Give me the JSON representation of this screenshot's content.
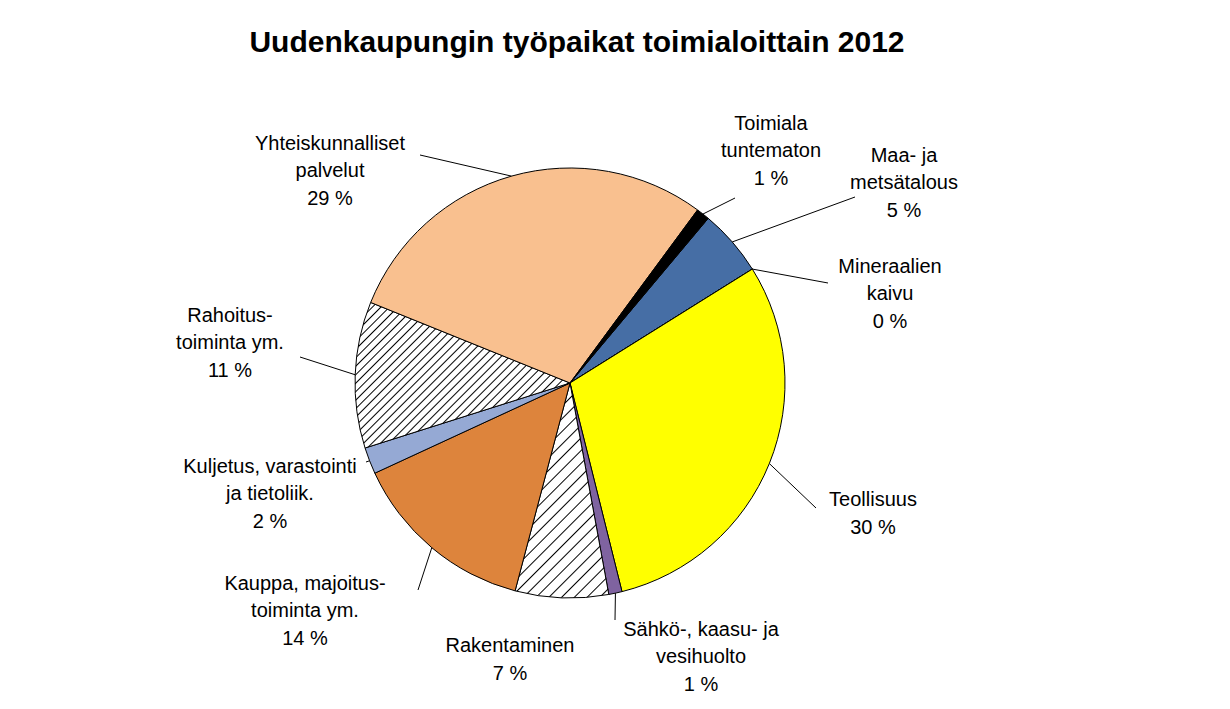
{
  "chart_data": {
    "type": "pie",
    "title": "Uudenkaupungin työpaikat toimialoittain 2012",
    "categories": [
      "Maa- ja\nmetsätalous",
      "Mineraalien\nkaivu",
      "Teollisuus",
      "Sähkö-, kaasu- ja\nvesihuolto",
      "Rakentaminen",
      "Kauppa, majoitus-\ntoiminta ym.",
      "Kuljetus, varastointi\nja tietoliik.",
      "Rahoitus-\ntoiminta ym.",
      "Yhteiskunnalliset\npalvelut",
      "Toimiala\ntuntematon"
    ],
    "values": [
      5,
      0,
      30,
      1,
      7,
      14,
      2,
      11,
      29,
      1
    ],
    "value_labels": [
      "5 %",
      "0 %",
      "30 %",
      "1 %",
      "7 %",
      "14 %",
      "2 %",
      "11 %",
      "29 %",
      "1 %"
    ],
    "colors": [
      "#466ea5",
      "#808080",
      "#ffff00",
      "#7f63a0",
      "#000000",
      "#dd843c",
      "#95a9d4",
      "#000000",
      "#f9c08f",
      "#000000"
    ],
    "data_labels": true
  }
}
